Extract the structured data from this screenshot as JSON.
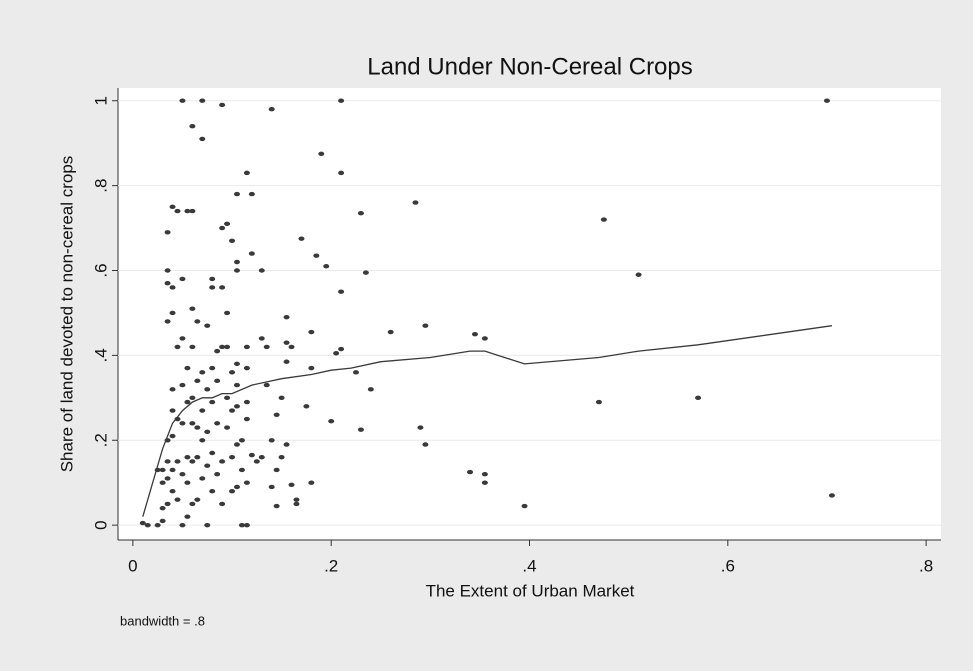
{
  "chart_data": {
    "type": "scatter",
    "title": "Land Under Non-Cereal Crops",
    "x_label": "The Extent of Urban Market",
    "y_label": "Share of land devoted to non-cereal crops",
    "note": "bandwidth = .8",
    "xlim": [
      -0.015,
      0.815
    ],
    "ylim": [
      -0.035,
      1.03
    ],
    "xticks": [
      0,
      {
        "value": 0.2,
        "label": ".2"
      },
      {
        "value": 0.4,
        "label": ".4"
      },
      {
        "value": 0.6,
        "label": ".6"
      },
      {
        "value": 0.8,
        "label": ".8"
      }
    ],
    "yticks": [
      0,
      {
        "value": 0.2,
        "label": ".2"
      },
      {
        "value": 0.4,
        "label": ".4"
      },
      {
        "value": 0.6,
        "label": ".6"
      },
      {
        "value": 0.8,
        "label": ".8"
      },
      1
    ],
    "grid": true,
    "series": [
      {
        "type": "scatter",
        "color": "#3a3a3a",
        "x": [
          0.7,
          0.705,
          0.57,
          0.51,
          0.475,
          0.47,
          0.395,
          0.355,
          0.355,
          0.355,
          0.345,
          0.34,
          0.295,
          0.295,
          0.29,
          0.285,
          0.26,
          0.24,
          0.235,
          0.23,
          0.23,
          0.225,
          0.21,
          0.21,
          0.21,
          0.21,
          0.205,
          0.2,
          0.195,
          0.19,
          0.185,
          0.18,
          0.18,
          0.18,
          0.17,
          0.175,
          0.165,
          0.165,
          0.16,
          0.16,
          0.155,
          0.155,
          0.155,
          0.155,
          0.15,
          0.15,
          0.145,
          0.145,
          0.145,
          0.14,
          0.14,
          0.14,
          0.135,
          0.135,
          0.13,
          0.13,
          0.13,
          0.125,
          0.12,
          0.12,
          0.12,
          0.115,
          0.115,
          0.115,
          0.115,
          0.115,
          0.115,
          0.115,
          0.11,
          0.11,
          0.11,
          0.105,
          0.105,
          0.105,
          0.105,
          0.105,
          0.105,
          0.105,
          0.105,
          0.1,
          0.1,
          0.1,
          0.1,
          0.1,
          0.095,
          0.095,
          0.095,
          0.095,
          0.095,
          0.09,
          0.09,
          0.09,
          0.09,
          0.09,
          0.09,
          0.085,
          0.085,
          0.085,
          0.085,
          0.08,
          0.08,
          0.08,
          0.08,
          0.08,
          0.08,
          0.075,
          0.075,
          0.075,
          0.075,
          0.075,
          0.07,
          0.07,
          0.07,
          0.07,
          0.07,
          0.07,
          0.065,
          0.065,
          0.065,
          0.065,
          0.065,
          0.06,
          0.06,
          0.06,
          0.06,
          0.06,
          0.06,
          0.06,
          0.06,
          0.055,
          0.055,
          0.055,
          0.055,
          0.055,
          0.055,
          0.05,
          0.05,
          0.05,
          0.05,
          0.05,
          0.05,
          0.05,
          0.045,
          0.045,
          0.045,
          0.045,
          0.045,
          0.04,
          0.04,
          0.04,
          0.04,
          0.04,
          0.04,
          0.04,
          0.04,
          0.035,
          0.035,
          0.035,
          0.035,
          0.035,
          0.035,
          0.035,
          0.035,
          0.03,
          0.03,
          0.03,
          0.03,
          0.025,
          0.025,
          0.015,
          0.01
        ],
        "values": [
          1.0,
          0.07,
          0.3,
          0.59,
          0.72,
          0.29,
          0.045,
          0.44,
          0.12,
          0.1,
          0.45,
          0.125,
          0.47,
          0.19,
          0.23,
          0.76,
          0.455,
          0.32,
          0.595,
          0.735,
          0.225,
          0.36,
          1.0,
          0.83,
          0.55,
          0.415,
          0.405,
          0.245,
          0.61,
          0.875,
          0.635,
          0.37,
          0.455,
          0.1,
          0.675,
          0.28,
          0.05,
          0.06,
          0.095,
          0.42,
          0.43,
          0.385,
          0.49,
          0.19,
          0.3,
          0.16,
          0.26,
          0.13,
          0.045,
          0.98,
          0.2,
          0.09,
          0.42,
          0.33,
          0.6,
          0.44,
          0.16,
          0.15,
          0.78,
          0.64,
          0.165,
          0.83,
          0.37,
          0.42,
          0.29,
          0.25,
          0.1,
          0.0,
          0.2,
          0.13,
          0.0,
          0.78,
          0.62,
          0.6,
          0.38,
          0.33,
          0.28,
          0.19,
          0.09,
          0.67,
          0.36,
          0.27,
          0.16,
          0.08,
          0.71,
          0.5,
          0.42,
          0.3,
          0.23,
          0.99,
          0.7,
          0.56,
          0.42,
          0.15,
          0.05,
          0.41,
          0.34,
          0.24,
          0.12,
          0.58,
          0.56,
          0.37,
          0.29,
          0.17,
          0.08,
          0.47,
          0.32,
          0.22,
          0.14,
          0.0,
          1.0,
          0.91,
          0.36,
          0.27,
          0.2,
          0.11,
          0.48,
          0.34,
          0.23,
          0.16,
          0.06,
          0.94,
          0.74,
          0.51,
          0.42,
          0.3,
          0.24,
          0.15,
          0.05,
          0.74,
          0.37,
          0.29,
          0.16,
          0.1,
          0.02,
          1.0,
          0.58,
          0.44,
          0.33,
          0.24,
          0.12,
          0.0,
          0.74,
          0.42,
          0.25,
          0.15,
          0.06,
          0.75,
          0.56,
          0.5,
          0.32,
          0.27,
          0.21,
          0.13,
          0.08,
          0.69,
          0.6,
          0.57,
          0.48,
          0.2,
          0.15,
          0.11,
          0.05,
          0.13,
          0.1,
          0.04,
          0.01,
          0.13,
          0.0,
          0.0,
          0.005
        ]
      },
      {
        "type": "line",
        "color": "#3a3a3a",
        "x": [
          0.01,
          0.02,
          0.03,
          0.04,
          0.05,
          0.06,
          0.07,
          0.08,
          0.09,
          0.1,
          0.12,
          0.15,
          0.18,
          0.2,
          0.22,
          0.25,
          0.3,
          0.34,
          0.355,
          0.395,
          0.47,
          0.51,
          0.57,
          0.705
        ],
        "values": [
          0.02,
          0.1,
          0.18,
          0.24,
          0.27,
          0.29,
          0.3,
          0.3,
          0.31,
          0.31,
          0.33,
          0.345,
          0.355,
          0.365,
          0.37,
          0.385,
          0.395,
          0.41,
          0.41,
          0.38,
          0.395,
          0.41,
          0.425,
          0.47
        ]
      }
    ]
  }
}
